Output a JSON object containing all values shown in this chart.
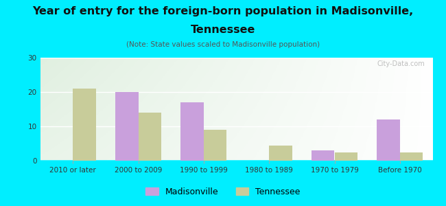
{
  "title_line1": "Year of entry for the foreign-born population in Madisonville,",
  "title_line2": "Tennessee",
  "subtitle": "(Note: State values scaled to Madisonville population)",
  "categories": [
    "2010 or later",
    "2000 to 2009",
    "1990 to 1999",
    "1980 to 1989",
    "1970 to 1979",
    "Before 1970"
  ],
  "madisonville": [
    0,
    20,
    17,
    0,
    3,
    12
  ],
  "tennessee": [
    21,
    14,
    9,
    4.5,
    2.5,
    2.5
  ],
  "madisonville_color": "#c9a0dc",
  "tennessee_color": "#c8cc9a",
  "background_color": "#00eeff",
  "ylim": [
    0,
    30
  ],
  "yticks": [
    0,
    10,
    20,
    30
  ],
  "bar_width": 0.35,
  "title_fontsize": 11.5,
  "subtitle_fontsize": 7.5,
  "legend_fontsize": 9,
  "tick_fontsize": 7.5,
  "watermark": "City-Data.com"
}
